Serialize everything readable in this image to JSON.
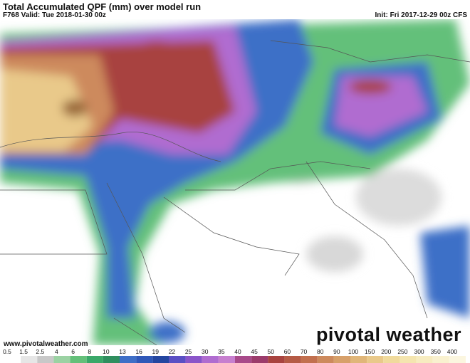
{
  "header": {
    "title": "Total Accumulated QPF (mm) over model run",
    "valid": "F768 Valid: Tue 2018-01-30 00z",
    "init": "Init: Fri 2017-12-29 00z CFS"
  },
  "footer": {
    "website": "www.pivotalweather.com"
  },
  "logo": "pivotal weather",
  "colorbar": {
    "labels": [
      "0.5",
      "1.5",
      "2.5",
      "4",
      "6",
      "8",
      "10",
      "13",
      "16",
      "19",
      "22",
      "25",
      "30",
      "35",
      "40",
      "45",
      "50",
      "60",
      "70",
      "80",
      "90",
      "100",
      "150",
      "200",
      "250",
      "300",
      "350",
      "400"
    ],
    "colors": [
      "#ffffff",
      "#e6e6e6",
      "#c8c8c8",
      "#9bd2a3",
      "#64c07a",
      "#3aa869",
      "#2f8f5f",
      "#3e6fc7",
      "#2f58b8",
      "#2446a0",
      "#5a4fc4",
      "#8a55c9",
      "#b06cd0",
      "#c77fcf",
      "#a84a8a",
      "#9b3b6b",
      "#a8433f",
      "#b55a45",
      "#c2704f",
      "#cd8a5d",
      "#d7a06a",
      "#e0b679",
      "#e9c98a",
      "#f0da9c",
      "#f4e5af",
      "#f7ecc0",
      "#f9f1cf",
      "#fbf6df"
    ]
  }
}
